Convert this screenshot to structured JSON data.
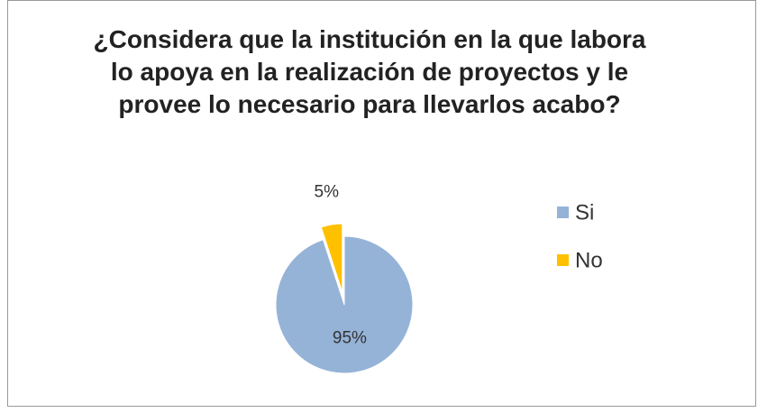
{
  "chart_data": {
    "type": "pie",
    "title": "¿Considera que la institución en la que labora lo apoya en la realización de proyectos y le provee lo necesario para llevarlos acabo?",
    "categories": [
      "Si",
      "No"
    ],
    "values": [
      95,
      5
    ],
    "value_labels": [
      "95%",
      "5%"
    ],
    "colors": [
      "#95b3d7",
      "#ffc000"
    ],
    "legend": "right"
  }
}
